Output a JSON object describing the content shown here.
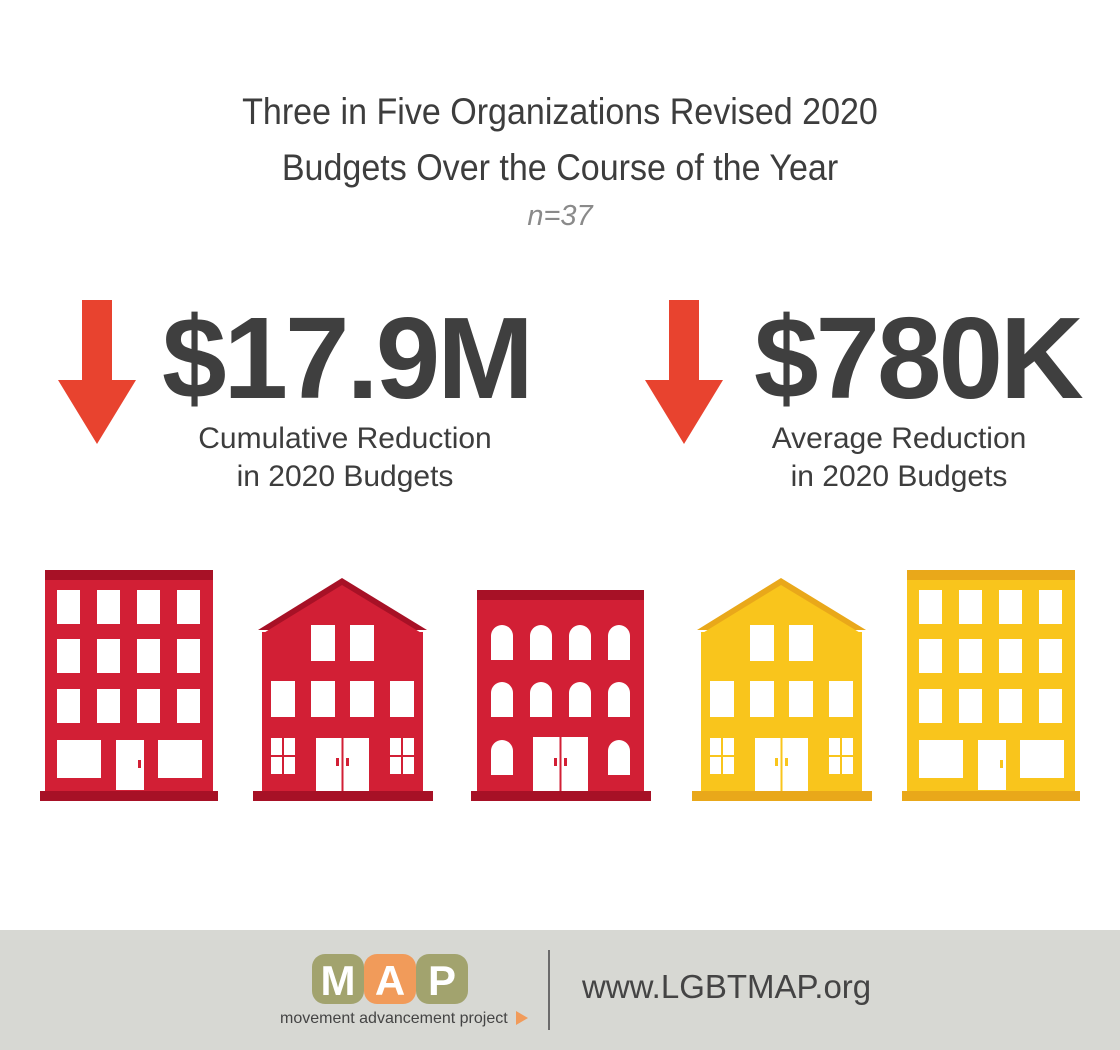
{
  "title": {
    "line1": "Three in Five Organizations Revised 2020",
    "line2": "Budgets Over the Course of the Year"
  },
  "sample_size": "n=37",
  "stats": [
    {
      "value": "$17.9M",
      "label_line1": "Cumulative Reduction",
      "label_line2": "in 2020 Budgets"
    },
    {
      "value": "$780K",
      "label_line1": "Average Reduction",
      "label_line2": "in 2020 Budgets"
    }
  ],
  "icons": [
    "down-arrow-icon",
    "building-icon",
    "map-logo"
  ],
  "colors": {
    "arrow": "#e8432f",
    "building_red": "#d21f35",
    "building_red_dark": "#a71126",
    "building_yellow": "#f9c51c",
    "building_yellow_dark": "#e9a81a",
    "footer_bg": "#d7d8d3",
    "logo_green": "#a2a36e",
    "logo_orange": "#f19b5a"
  },
  "footer": {
    "logo_text": "MAP",
    "logo_tagline": "movement advancement project",
    "url": "www.LGBTMAP.org"
  }
}
